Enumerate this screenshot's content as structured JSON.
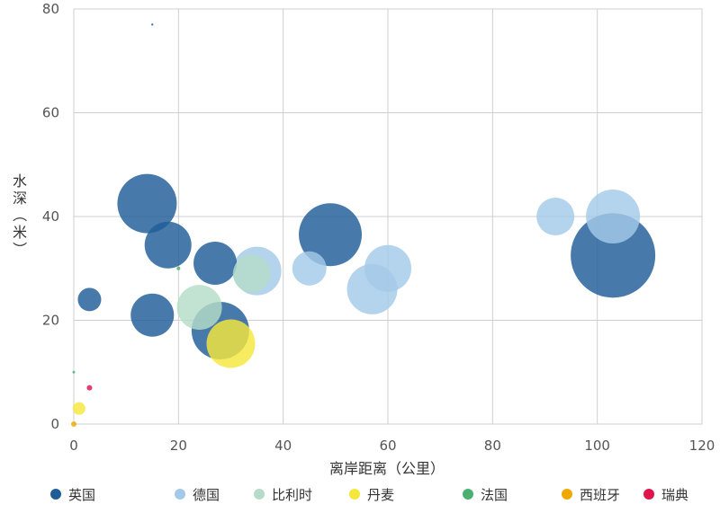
{
  "chart_data": {
    "type": "bubble",
    "xlabel": "离岸距离（公里）",
    "ylabel": "水深（米）",
    "xlim": [
      0,
      120
    ],
    "ylim": [
      0,
      80
    ],
    "xticks": [
      0,
      20,
      40,
      60,
      80,
      100,
      120
    ],
    "yticks": [
      0,
      20,
      40,
      60,
      80
    ],
    "grid": true,
    "legend_position": "bottom",
    "series": [
      {
        "name": "英国",
        "color": "#1f5d99",
        "points": [
          {
            "x": 15,
            "y": 77,
            "size": 0.3
          },
          {
            "x": 3,
            "y": 24,
            "size": 13
          },
          {
            "x": 14,
            "y": 42.5,
            "size": 33
          },
          {
            "x": 18,
            "y": 34.5,
            "size": 26
          },
          {
            "x": 27,
            "y": 31,
            "size": 24
          },
          {
            "x": 15,
            "y": 21,
            "size": 24
          },
          {
            "x": 28,
            "y": 18,
            "size": 32
          },
          {
            "x": 49,
            "y": 36.5,
            "size": 35
          },
          {
            "x": 103,
            "y": 32.5,
            "size": 47
          }
        ]
      },
      {
        "name": "德国",
        "color": "#a4c9e8",
        "points": [
          {
            "x": 35,
            "y": 29.5,
            "size": 27
          },
          {
            "x": 45,
            "y": 30,
            "size": 19
          },
          {
            "x": 57,
            "y": 26,
            "size": 28
          },
          {
            "x": 60,
            "y": 30,
            "size": 26
          },
          {
            "x": 92,
            "y": 40,
            "size": 21
          },
          {
            "x": 103,
            "y": 40,
            "size": 30
          }
        ]
      },
      {
        "name": "比利时",
        "color": "#b5dcc8",
        "points": [
          {
            "x": 24,
            "y": 22.5,
            "size": 25
          },
          {
            "x": 34,
            "y": 29,
            "size": 21
          }
        ]
      },
      {
        "name": "丹麦",
        "color": "#f5e63c",
        "points": [
          {
            "x": 30,
            "y": 15.5,
            "size": 27
          },
          {
            "x": 1,
            "y": 3,
            "size": 7
          }
        ]
      },
      {
        "name": "法国",
        "color": "#4caf72",
        "points": [
          {
            "x": 20,
            "y": 30,
            "size": 2
          },
          {
            "x": 0,
            "y": 10,
            "size": 1.5
          }
        ]
      },
      {
        "name": "西班牙",
        "color": "#f0a800",
        "points": [
          {
            "x": 0,
            "y": 0,
            "size": 3
          }
        ]
      },
      {
        "name": "瑞典",
        "color": "#e0144c",
        "points": [
          {
            "x": 3,
            "y": 7,
            "size": 3
          }
        ]
      }
    ]
  }
}
